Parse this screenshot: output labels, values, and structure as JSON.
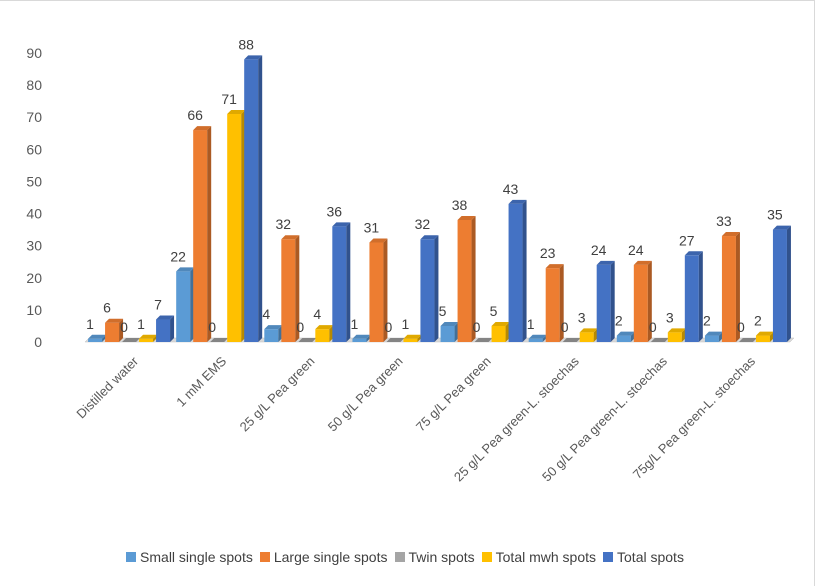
{
  "chart_data": {
    "type": "bar",
    "title": "",
    "xlabel": "",
    "ylabel": "",
    "ylim": [
      0,
      90
    ],
    "yticks": [
      0,
      10,
      20,
      30,
      40,
      50,
      60,
      70,
      80,
      90
    ],
    "grid": false,
    "legend_position": "bottom",
    "categories": [
      "Distilled water",
      "1 mM EMS",
      "25 g/L Pea green",
      "50 g/L Pea green",
      "75 g/L Pea green",
      "25 g/L Pea green-L. stoechas",
      "50 g/L Pea green-L. stoechas",
      "75g/L Pea green-L. stoechas"
    ],
    "series": [
      {
        "name": "Small single spots",
        "color": "#5b9bd5",
        "values": [
          1,
          22,
          4,
          1,
          5,
          1,
          2,
          2
        ]
      },
      {
        "name": "Large single spots",
        "color": "#ed7d31",
        "values": [
          6,
          66,
          32,
          31,
          38,
          23,
          24,
          33
        ]
      },
      {
        "name": "Twin spots",
        "color": "#a5a5a5",
        "values": [
          0,
          0,
          0,
          0,
          0,
          0,
          0,
          0
        ]
      },
      {
        "name": "Total mwh spots",
        "color": "#ffc000",
        "values": [
          1,
          71,
          4,
          1,
          5,
          3,
          3,
          2
        ]
      },
      {
        "name": "Total spots",
        "color": "#4472c4",
        "values": [
          7,
          88,
          36,
          32,
          43,
          24,
          27,
          35
        ]
      }
    ]
  }
}
